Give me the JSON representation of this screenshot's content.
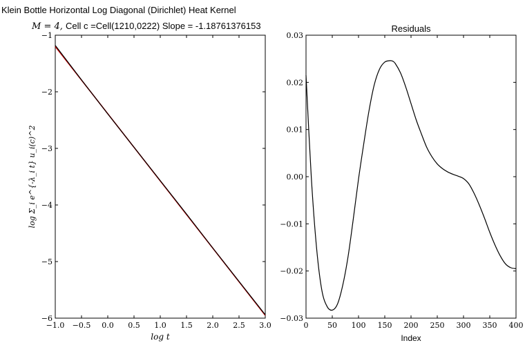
{
  "title_line1": "Klein Bottle Horizontal Log Diagonal (Dirichlet) Heat Kernel",
  "title_line2_math": "M = 4,",
  "title_line2_text": "Cell c =Cell(1210,0222) Slope = -1.18761376153",
  "chart_data": [
    {
      "type": "line",
      "title": "",
      "xlabel": "log t",
      "ylabel": "log Σ_i e^{-λ_i t} u_i(c)^2",
      "xlim": [
        -1.0,
        3.0
      ],
      "ylim": [
        -6,
        -1
      ],
      "xticks": [
        "−1.0",
        "−0.5",
        "0.0",
        "0.5",
        "1.0",
        "1.5",
        "2.0",
        "2.5",
        "3.0"
      ],
      "yticks": [
        "−6",
        "−5",
        "−4",
        "−3",
        "−2",
        "−1"
      ],
      "grid": false,
      "series": [
        {
          "name": "",
          "color": "#000000",
          "x": [
            -1.0,
            -0.5,
            0.0,
            0.5,
            1.0,
            1.5,
            2.0,
            2.5,
            3.0
          ],
          "y": [
            -1.18,
            -1.79,
            -2.39,
            -2.98,
            -3.57,
            -4.16,
            -4.76,
            -5.35,
            -5.94
          ]
        },
        {
          "name": "",
          "color": "#cc0000",
          "x": [
            -1.0,
            3.0
          ],
          "y": [
            -1.2,
            -5.95
          ]
        }
      ]
    },
    {
      "type": "line",
      "title": "Residuals",
      "xlabel": "Index",
      "ylabel": "",
      "xlim": [
        0,
        400
      ],
      "ylim": [
        -0.03,
        0.03
      ],
      "xticks": [
        "0",
        "50",
        "100",
        "150",
        "200",
        "250",
        "300",
        "350",
        "400"
      ],
      "yticks": [
        "−0.03",
        "−0.02",
        "−0.01",
        "0.00",
        "0.01",
        "0.02",
        "0.03"
      ],
      "grid": false,
      "series": [
        {
          "name": "",
          "color": "#000000",
          "x": [
            0,
            10,
            20,
            30,
            40,
            50,
            60,
            70,
            80,
            90,
            100,
            110,
            120,
            130,
            140,
            150,
            160,
            165,
            170,
            180,
            190,
            200,
            210,
            220,
            230,
            240,
            250,
            260,
            270,
            280,
            290,
            300,
            310,
            320,
            330,
            340,
            350,
            360,
            370,
            380,
            390,
            400
          ],
          "y": [
            0.0215,
            0.0,
            -0.015,
            -0.024,
            -0.0275,
            -0.0283,
            -0.027,
            -0.023,
            -0.017,
            -0.009,
            -0.0005,
            0.007,
            0.014,
            0.0195,
            0.0228,
            0.0243,
            0.0246,
            0.0245,
            0.024,
            0.022,
            0.019,
            0.0155,
            0.012,
            0.009,
            0.0062,
            0.0042,
            0.0027,
            0.0017,
            0.001,
            0.0005,
            0.0001,
            -0.0004,
            -0.0015,
            -0.0035,
            -0.006,
            -0.0088,
            -0.0118,
            -0.0145,
            -0.0168,
            -0.0185,
            -0.0193,
            -0.0195
          ]
        }
      ]
    }
  ]
}
